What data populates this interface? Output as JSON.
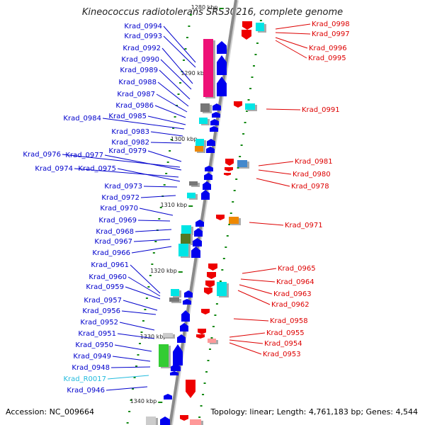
{
  "title": "Kineococcus radiotolerans SRS30216, complete genome",
  "accession_text": "Accession: NC_009664",
  "topology_text": "Topology: linear; Length: 4,761,183 bp; Genes: 4,544",
  "colors": {
    "left_label": "#0000cc",
    "right_label": "#dd0000",
    "rna_label": "#22bbdd",
    "axis": "#8a8a8a",
    "tick": "#118811",
    "forward_gene": "#0000ee",
    "reverse_gene": "#ee0000",
    "pink_gene": "#ee1177",
    "cyan_gene": "#00e5e5",
    "green_gene": "#33cc33",
    "olive_gene": "#557722",
    "orange_gene": "#ee8800",
    "steel_gene": "#4488cc",
    "grey_gene": "#777777"
  },
  "ticks": [
    "1280 kbp",
    "1290 kbp",
    "1300 kbp",
    "1310 kbp",
    "1320 kbp",
    "1330 kbp",
    "1340 kbp"
  ],
  "left_labels": [
    "Krad_0994",
    "Krad_0993",
    "Krad_0992",
    "Krad_0990",
    "Krad_0989",
    "Krad_0988",
    "Krad_0987",
    "Krad_0986",
    "Krad_0985",
    "Krad_0984",
    "Krad_0983",
    "Krad_0982",
    "Krad_0979",
    "Krad_0976",
    "Krad_0977",
    "Krad_0974",
    "Krad_0975",
    "Krad_0973",
    "Krad_0972",
    "Krad_0970",
    "Krad_0969",
    "Krad_0968",
    "Krad_0967",
    "Krad_0966",
    "Krad_0961",
    "Krad_0960",
    "Krad_0959",
    "Krad_0957",
    "Krad_0956",
    "Krad_0952",
    "Krad_0951",
    "Krad_0950",
    "Krad_0949",
    "Krad_0948",
    "Krad_R0017",
    "Krad_0946"
  ],
  "right_labels": [
    "Krad_0998",
    "Krad_0997",
    "Krad_0996",
    "Krad_0995",
    "Krad_0991",
    "Krad_0981",
    "Krad_0980",
    "Krad_0978",
    "Krad_0971",
    "Krad_0965",
    "Krad_0964",
    "Krad_0963",
    "Krad_0962",
    "Krad_0958",
    "Krad_0955",
    "Krad_0954",
    "Krad_0953"
  ]
}
